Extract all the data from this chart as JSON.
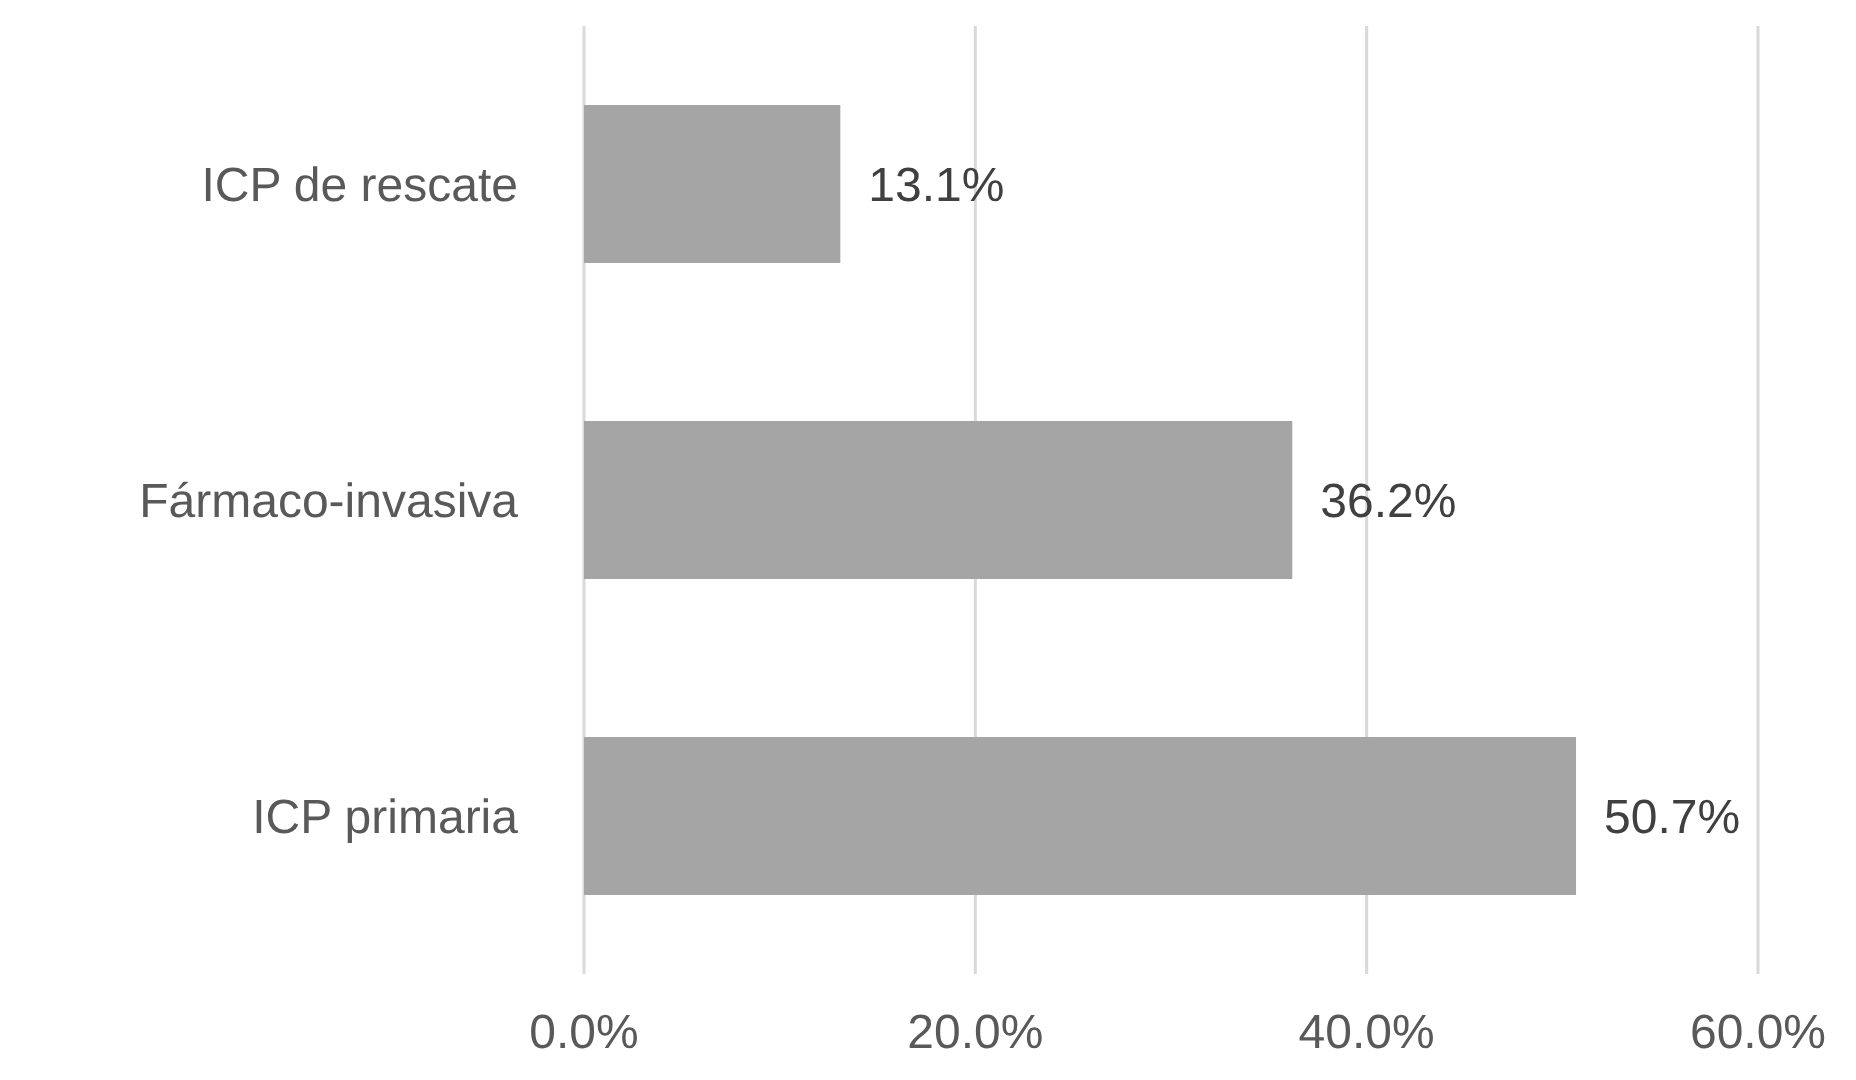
{
  "chart_data": {
    "type": "bar",
    "orientation": "horizontal",
    "categories": [
      "ICP de rescate",
      "Fármaco-invasiva",
      "ICP primaria"
    ],
    "values": [
      13.1,
      36.2,
      50.7
    ],
    "value_labels": [
      "13.1%",
      "36.2%",
      "50.7%"
    ],
    "color": "#a5a5a5",
    "xlim": [
      0,
      60
    ],
    "xticks": [
      {
        "value": 0,
        "label": "0.0%"
      },
      {
        "value": 20,
        "label": "20.0%"
      },
      {
        "value": 40,
        "label": "40.0%"
      },
      {
        "value": 60,
        "label": "60.0%"
      }
    ],
    "grid": "x"
  }
}
